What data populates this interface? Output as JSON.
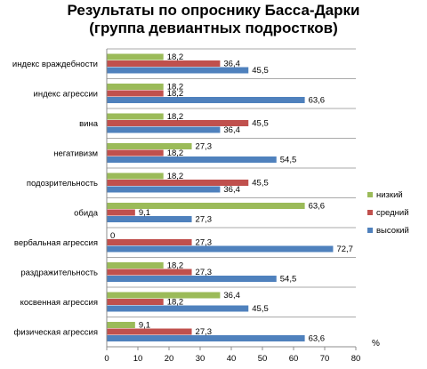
{
  "chart_data": {
    "type": "bar",
    "orientation": "horizontal",
    "title_lines": [
      "Результаты по опроснику Басса-Дарки",
      "(группа девиантных подростков)"
    ],
    "categories": [
      "индекс враждебности",
      "индекс агрессии",
      "вина",
      "негативизм",
      "подозрительность",
      "обида",
      "вербальная агрессия",
      "раздражительность",
      "косвенная агрессия",
      "физическая агрессия"
    ],
    "series": [
      {
        "name": "низкий",
        "color": "#9bbb59",
        "values": [
          18.2,
          18.2,
          18.2,
          27.3,
          18.2,
          63.6,
          0,
          18.2,
          36.4,
          9.1
        ]
      },
      {
        "name": "средний",
        "color": "#c0504d",
        "values": [
          36.4,
          18.2,
          45.5,
          18.2,
          45.5,
          9.1,
          27.3,
          27.3,
          18.2,
          27.3
        ]
      },
      {
        "name": "высокий",
        "color": "#4f81bd",
        "values": [
          45.5,
          63.6,
          36.4,
          54.5,
          36.4,
          27.3,
          72.7,
          54.5,
          45.5,
          63.6
        ]
      }
    ],
    "data_labels": [
      [
        "18,2",
        "18,2",
        "18,2",
        "27,3",
        "18,2",
        "63,6",
        "0",
        "18,2",
        "36,4",
        "9,1"
      ],
      [
        "36,4",
        "18,2",
        "45,5",
        "18,2",
        "45,5",
        "9,1",
        "27,3",
        "27,3",
        "18,2",
        "27,3"
      ],
      [
        "45,5",
        "63,6",
        "36,4",
        "54,5",
        "36,4",
        "27,3",
        "72,7",
        "54,5",
        "45,5",
        "63,6"
      ]
    ],
    "xlim": [
      0,
      80
    ],
    "x_ticks": [
      0,
      10,
      20,
      30,
      40,
      50,
      60,
      70,
      80
    ],
    "x_unit_label": "%",
    "legend": [
      "низкий",
      "средний",
      "высокий"
    ],
    "legend_position": "right",
    "grid": "horizontal lines between categories"
  }
}
